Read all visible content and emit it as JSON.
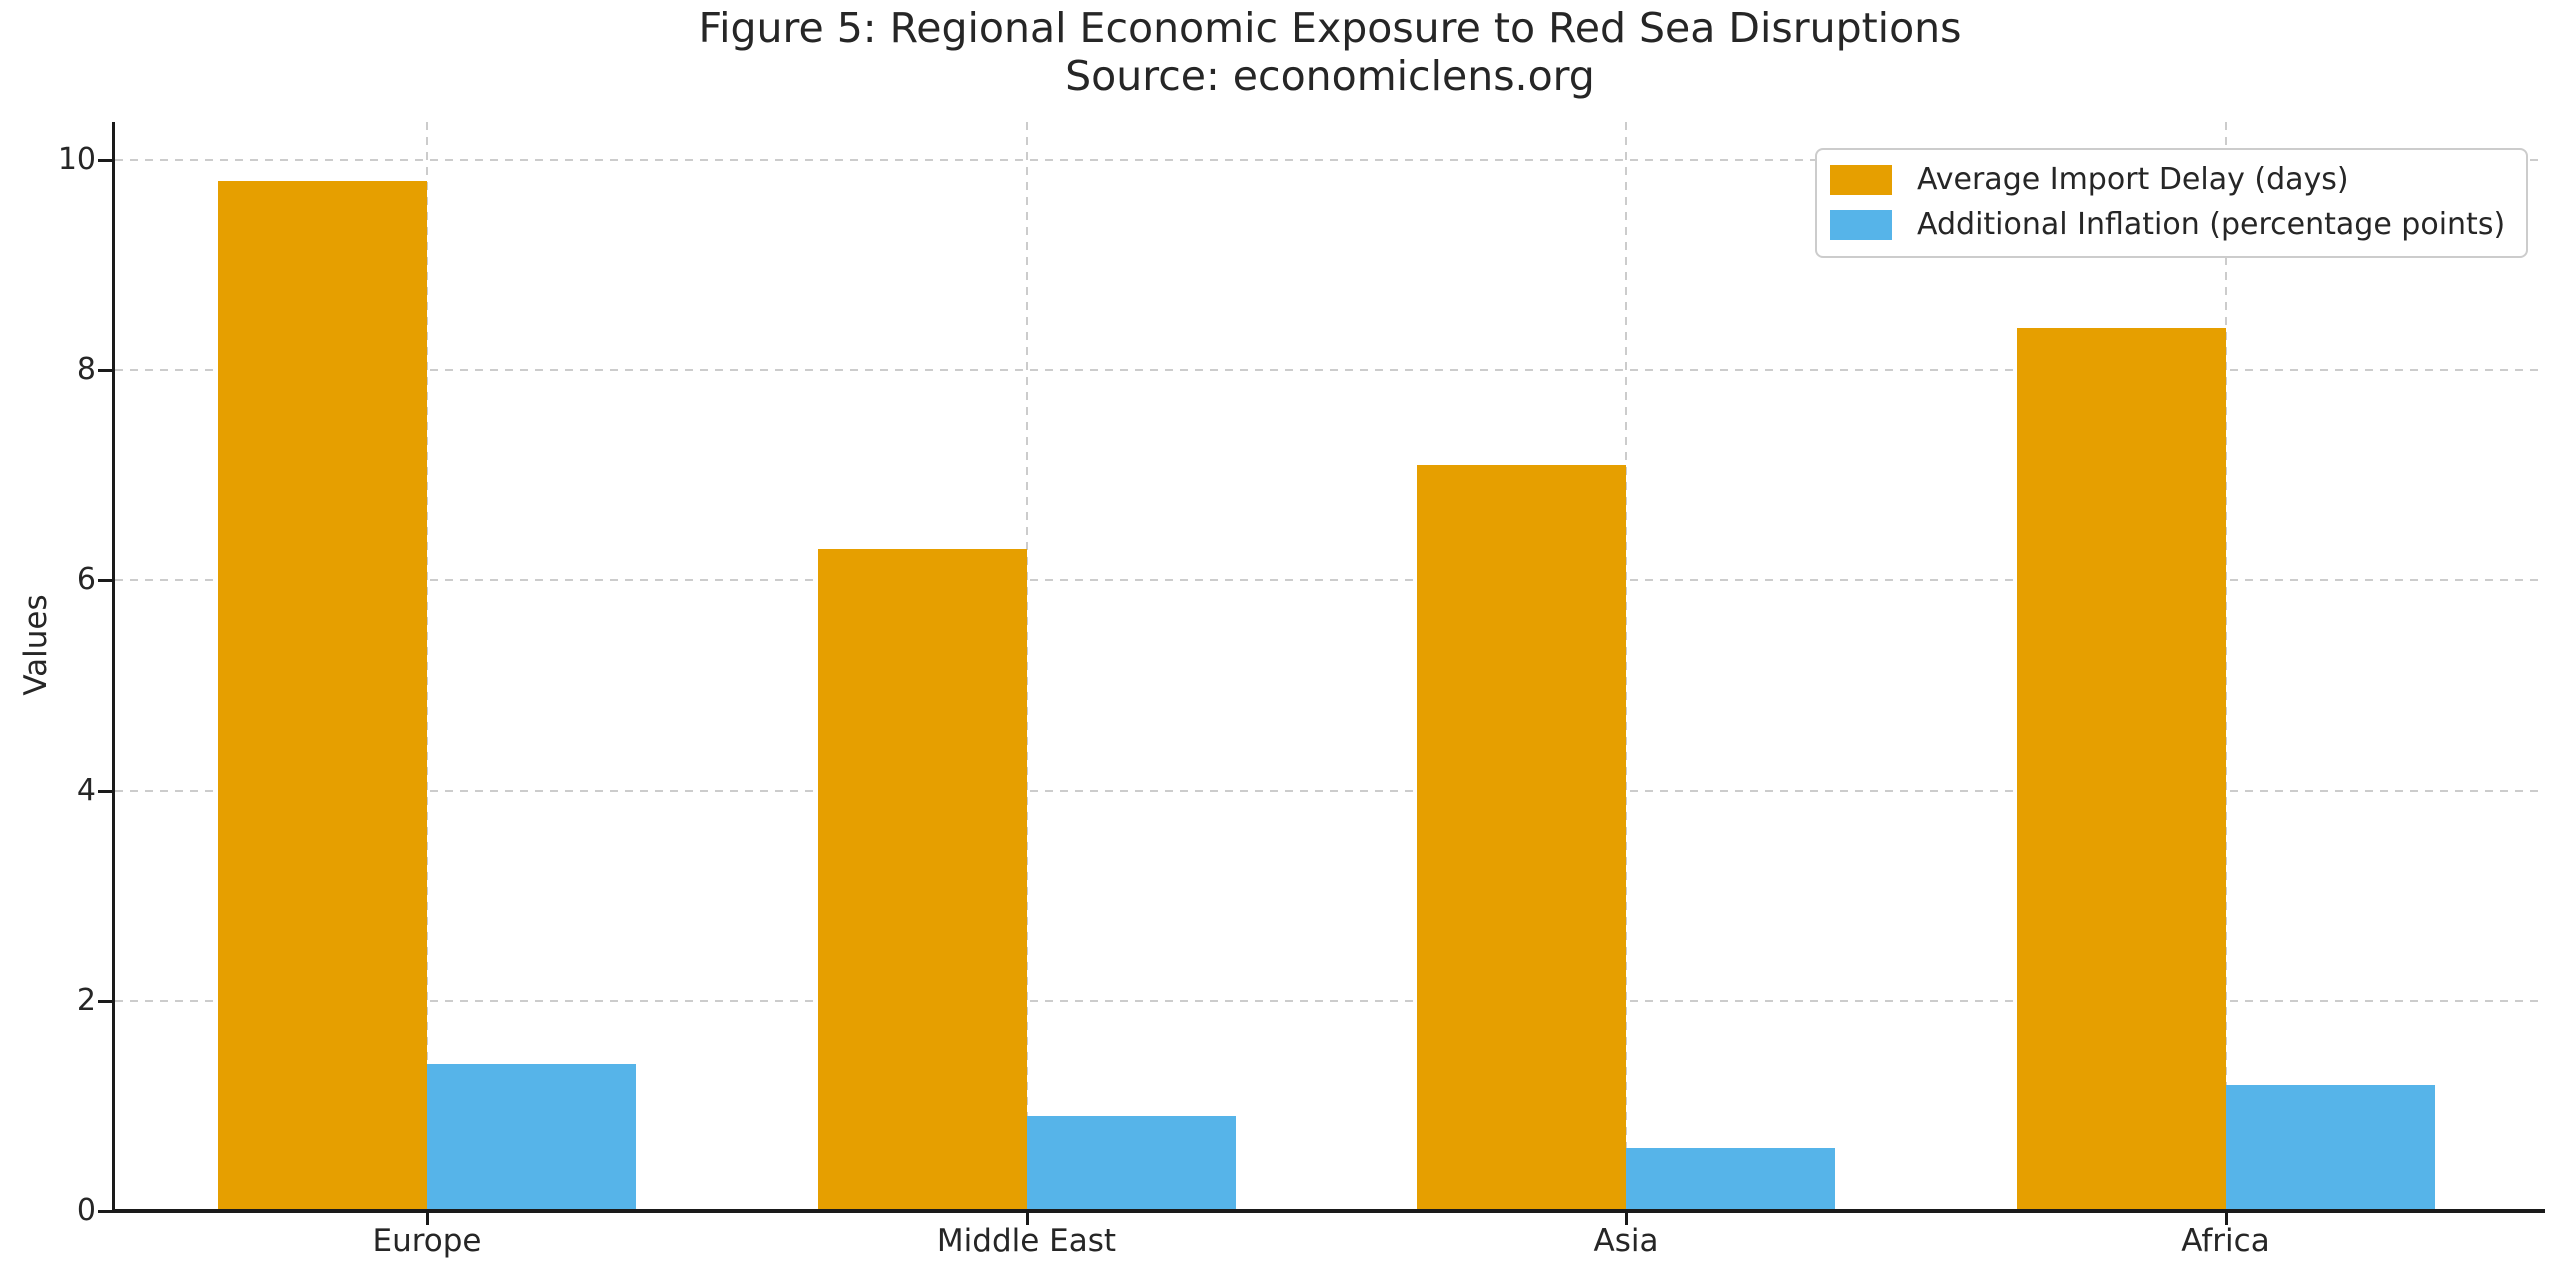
{
  "chart_data": {
    "type": "bar",
    "title": "Figure 5: Regional Economic Exposure to Red Sea Disruptions",
    "subtitle": "Source: economiclens.org",
    "ylabel": "Values",
    "xlabel": "",
    "categories": [
      "Europe",
      "Middle East",
      "Asia",
      "Africa"
    ],
    "series": [
      {
        "name": "Average Import Delay (days)",
        "color": "#E69F00",
        "values": [
          9.8,
          6.3,
          7.1,
          8.4
        ]
      },
      {
        "name": "Additional Inflation (percentage points)",
        "color": "#56B4E9",
        "values": [
          1.4,
          0.9,
          0.6,
          1.2
        ]
      }
    ],
    "yticks": [
      0,
      2,
      4,
      6,
      8,
      10
    ],
    "ylim": [
      0,
      10.36
    ],
    "grid": "dashed, horizontal at y ticks and vertical at category centers, below bars",
    "legend_position": "upper-right"
  },
  "colors": {
    "bar_orange": "#E69F00",
    "bar_blue": "#56B4E9",
    "grid": "#CCCCCC",
    "axis": "#1A1A1A",
    "text": "#262626",
    "legend_border": "#CCCCCC",
    "background": "#FFFFFF"
  }
}
